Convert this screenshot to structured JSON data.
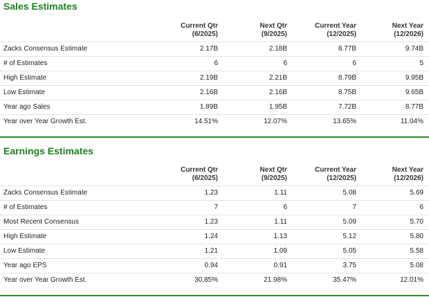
{
  "sales": {
    "title": "Sales Estimates",
    "columns": [
      {
        "line1": "Current Qtr",
        "line2": "(6/2025)"
      },
      {
        "line1": "Next Qtr",
        "line2": "(9/2025)"
      },
      {
        "line1": "Current Year",
        "line2": "(12/2025)"
      },
      {
        "line1": "Next Year",
        "line2": "(12/2026)"
      }
    ],
    "rows": [
      {
        "label": "Zacks Consensus Estimate",
        "values": [
          "2.17B",
          "2.18B",
          "8.77B",
          "9.74B"
        ]
      },
      {
        "label": "# of Estimates",
        "values": [
          "6",
          "6",
          "6",
          "5"
        ]
      },
      {
        "label": "High Estimate",
        "values": [
          "2.19B",
          "2.21B",
          "8.79B",
          "9.95B"
        ]
      },
      {
        "label": "Low Estimate",
        "values": [
          "2.16B",
          "2.16B",
          "8.75B",
          "9.65B"
        ]
      },
      {
        "label": "Year ago Sales",
        "values": [
          "1.89B",
          "1.95B",
          "7.72B",
          "8.77B"
        ]
      },
      {
        "label": "Year over Year Growth Est.",
        "values": [
          "14.51%",
          "12.07%",
          "13.65%",
          "11.04%"
        ]
      }
    ]
  },
  "earnings": {
    "title": "Earnings Estimates",
    "columns": [
      {
        "line1": "Current Qtr",
        "line2": "(6/2025)"
      },
      {
        "line1": "Next Qtr",
        "line2": "(9/2025)"
      },
      {
        "line1": "Current Year",
        "line2": "(12/2025)"
      },
      {
        "line1": "Next Year",
        "line2": "(12/2026)"
      }
    ],
    "rows": [
      {
        "label": "Zacks Consensus Estimate",
        "values": [
          "1.23",
          "1.11",
          "5.08",
          "5.69"
        ]
      },
      {
        "label": "# of Estimates",
        "values": [
          "7",
          "6",
          "7",
          "6"
        ]
      },
      {
        "label": "Most Recent Consensus",
        "values": [
          "1.23",
          "1.11",
          "5.09",
          "5.70"
        ]
      },
      {
        "label": "High Estimate",
        "values": [
          "1.24",
          "1.13",
          "5.12",
          "5.80"
        ]
      },
      {
        "label": "Low Estimate",
        "values": [
          "1.21",
          "1.09",
          "5.05",
          "5.58"
        ]
      },
      {
        "label": "Year ago EPS",
        "values": [
          "0.94",
          "0.91",
          "3.75",
          "5.08"
        ]
      },
      {
        "label": "Year over Year Growth Est.",
        "values": [
          "30.85%",
          "21.98%",
          "35.47%",
          "12.01%"
        ]
      }
    ]
  },
  "colors": {
    "accent": "#1e7e1e",
    "divider": "#2e8b2e",
    "row_border": "#e2e2e2"
  }
}
